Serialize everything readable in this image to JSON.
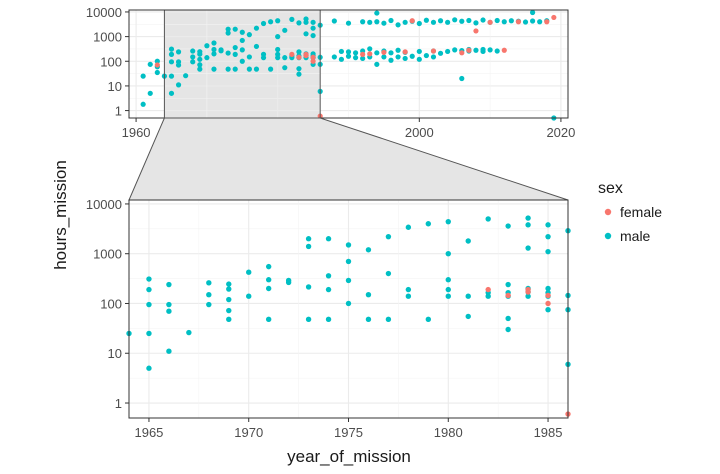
{
  "chart_data": {
    "type": "scatter",
    "xlabel": "year_of_mission",
    "ylabel": "hours_mission",
    "yscale": "log10",
    "grid": true,
    "legend_position": "right",
    "legend": {
      "title": "sex",
      "items": [
        {
          "label": "female",
          "color": "#F8766D"
        },
        {
          "label": "male",
          "color": "#00BFC4"
        }
      ]
    },
    "overview": {
      "xlim": [
        1959,
        2021
      ],
      "ylim": [
        0.5,
        12000
      ],
      "xticks": [
        "1960",
        "1980",
        "2000",
        "2020"
      ],
      "yticks": [
        "1",
        "10",
        "100",
        "1000",
        "10000"
      ],
      "zoom_region_x": [
        1964,
        1986
      ]
    },
    "detail": {
      "xlim": [
        1964,
        1986
      ],
      "ylim": [
        0.5,
        12000
      ],
      "xticks": [
        "1965",
        "1970",
        "1975",
        "1980",
        "1985"
      ],
      "yticks": [
        "1",
        "10",
        "100",
        "1000",
        "10000"
      ]
    },
    "series": [
      {
        "name": "male",
        "color": "#00BFC4",
        "points": [
          [
            1961,
            1.8
          ],
          [
            1961,
            25
          ],
          [
            1962,
            5
          ],
          [
            1962,
            75
          ],
          [
            1963,
            35
          ],
          [
            1963,
            100
          ],
          [
            1963,
            60
          ],
          [
            1964,
            25
          ],
          [
            1965,
            5
          ],
          [
            1965,
            25
          ],
          [
            1965,
            95
          ],
          [
            1965,
            190
          ],
          [
            1965,
            310
          ],
          [
            1966,
            11
          ],
          [
            1966,
            70
          ],
          [
            1966,
            95
          ],
          [
            1966,
            240
          ],
          [
            1967,
            26
          ],
          [
            1968,
            95
          ],
          [
            1968,
            150
          ],
          [
            1968,
            260
          ],
          [
            1969,
            48
          ],
          [
            1969,
            72
          ],
          [
            1969,
            120
          ],
          [
            1969,
            195
          ],
          [
            1969,
            245
          ],
          [
            1970,
            140
          ],
          [
            1970,
            425
          ],
          [
            1971,
            48
          ],
          [
            1971,
            200
          ],
          [
            1971,
            300
          ],
          [
            1971,
            550
          ],
          [
            1972,
            265
          ],
          [
            1972,
            290
          ],
          [
            1973,
            48
          ],
          [
            1973,
            215
          ],
          [
            1973,
            1400
          ],
          [
            1973,
            2000
          ],
          [
            1974,
            48
          ],
          [
            1974,
            190
          ],
          [
            1974,
            360
          ],
          [
            1974,
            2000
          ],
          [
            1975,
            100
          ],
          [
            1975,
            290
          ],
          [
            1975,
            700
          ],
          [
            1975,
            1500
          ],
          [
            1976,
            48
          ],
          [
            1976,
            150
          ],
          [
            1976,
            1200
          ],
          [
            1977,
            48
          ],
          [
            1977,
            400
          ],
          [
            1977,
            2200
          ],
          [
            1978,
            140
          ],
          [
            1978,
            190
          ],
          [
            1978,
            3400
          ],
          [
            1979,
            48
          ],
          [
            1979,
            4000
          ],
          [
            1980,
            140
          ],
          [
            1980,
            190
          ],
          [
            1980,
            300
          ],
          [
            1980,
            1000
          ],
          [
            1980,
            4400
          ],
          [
            1981,
            55
          ],
          [
            1981,
            140
          ],
          [
            1981,
            1800
          ],
          [
            1982,
            140
          ],
          [
            1982,
            165
          ],
          [
            1982,
            5000
          ],
          [
            1983,
            30
          ],
          [
            1983,
            50
          ],
          [
            1983,
            140
          ],
          [
            1983,
            165
          ],
          [
            1983,
            240
          ],
          [
            1983,
            3600
          ],
          [
            1984,
            140
          ],
          [
            1984,
            170
          ],
          [
            1984,
            200
          ],
          [
            1984,
            1300
          ],
          [
            1984,
            3800
          ],
          [
            1984,
            5200
          ],
          [
            1985,
            75
          ],
          [
            1985,
            140
          ],
          [
            1985,
            165
          ],
          [
            1985,
            200
          ],
          [
            1985,
            1100
          ],
          [
            1985,
            2200
          ],
          [
            1985,
            3800
          ],
          [
            1986,
            6
          ],
          [
            1986,
            75
          ],
          [
            1986,
            145
          ],
          [
            1986,
            2900
          ],
          [
            1988,
            150
          ],
          [
            1988,
            4300
          ],
          [
            1989,
            120
          ],
          [
            1989,
            250
          ],
          [
            1990,
            160
          ],
          [
            1990,
            240
          ],
          [
            1990,
            3500
          ],
          [
            1991,
            140
          ],
          [
            1991,
            220
          ],
          [
            1992,
            130
          ],
          [
            1992,
            260
          ],
          [
            1992,
            4000
          ],
          [
            1993,
            150
          ],
          [
            1993,
            320
          ],
          [
            1993,
            3800
          ],
          [
            1994,
            75
          ],
          [
            1994,
            220
          ],
          [
            1994,
            9000
          ],
          [
            1994,
            4000
          ],
          [
            1995,
            150
          ],
          [
            1995,
            260
          ],
          [
            1995,
            3500
          ],
          [
            1996,
            110
          ],
          [
            1996,
            220
          ],
          [
            1996,
            4500
          ],
          [
            1997,
            150
          ],
          [
            1997,
            280
          ],
          [
            1997,
            3000
          ],
          [
            1998,
            130
          ],
          [
            1998,
            230
          ],
          [
            1998,
            3800
          ],
          [
            1999,
            160
          ],
          [
            1999,
            4200
          ],
          [
            2000,
            120
          ],
          [
            2000,
            250
          ],
          [
            2000,
            3400
          ],
          [
            2001,
            170
          ],
          [
            2001,
            4600
          ],
          [
            2002,
            150
          ],
          [
            2002,
            260
          ],
          [
            2002,
            3800
          ],
          [
            2003,
            210
          ],
          [
            2003,
            4400
          ],
          [
            2004,
            250
          ],
          [
            2004,
            3800
          ],
          [
            2005,
            290
          ],
          [
            2005,
            4800
          ],
          [
            2006,
            20
          ],
          [
            2006,
            270
          ],
          [
            2006,
            4200
          ],
          [
            2007,
            260
          ],
          [
            2007,
            300
          ],
          [
            2007,
            4500
          ],
          [
            2008,
            280
          ],
          [
            2008,
            3600
          ],
          [
            2009,
            250
          ],
          [
            2009,
            300
          ],
          [
            2009,
            4700
          ],
          [
            2010,
            290
          ],
          [
            2010,
            3800
          ],
          [
            2011,
            260
          ],
          [
            2011,
            4500
          ],
          [
            2012,
            4000
          ],
          [
            2013,
            4400
          ],
          [
            2014,
            4200
          ],
          [
            2015,
            3900
          ],
          [
            2016,
            9500
          ],
          [
            2016,
            4300
          ],
          [
            2017,
            4000
          ],
          [
            2018,
            4400
          ],
          [
            2019,
            0.5
          ]
        ]
      },
      {
        "name": "female",
        "color": "#F8766D",
        "points": [
          [
            1963,
            71
          ],
          [
            1982,
            190
          ],
          [
            1983,
            145
          ],
          [
            1984,
            170
          ],
          [
            1984,
            190
          ],
          [
            1985,
            100
          ],
          [
            1985,
            145
          ],
          [
            1986,
            0.6
          ],
          [
            1992,
            190
          ],
          [
            1993,
            200
          ],
          [
            1995,
            230
          ],
          [
            1998,
            240
          ],
          [
            1999,
            4400
          ],
          [
            2002,
            260
          ],
          [
            2006,
            220
          ],
          [
            2007,
            280
          ],
          [
            2008,
            1700
          ],
          [
            2010,
            3800
          ],
          [
            2012,
            280
          ],
          [
            2014,
            4000
          ],
          [
            2018,
            4000
          ],
          [
            2019,
            6000
          ]
        ]
      }
    ]
  }
}
